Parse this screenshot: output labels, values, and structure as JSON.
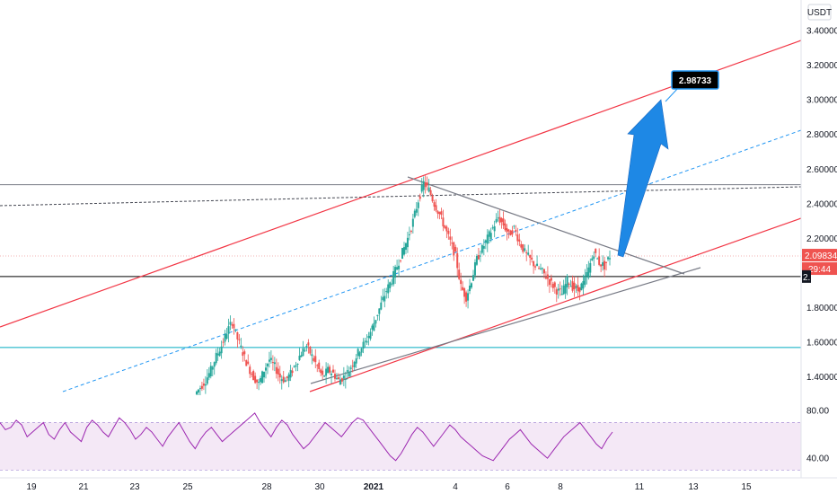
{
  "colors": {
    "up": "#26a69a",
    "down": "#ef5350",
    "channel": "#f23645",
    "midline": "#2196f3",
    "triangle": "#787b86",
    "arrow": "#1e88e5",
    "support": "#000000",
    "teal_line": "#00acc1",
    "rsi_line": "#9c27b0",
    "rsi_fill": "#f3e5f5",
    "last_price_bg": "#ef5350"
  },
  "chart_data": {
    "type": "candlestick",
    "currency_label": "USDT",
    "x_ticks": [
      "19",
      "21",
      "23",
      "25",
      "28",
      "30",
      "2021",
      "4",
      "6",
      "8",
      "11",
      "13",
      "15"
    ],
    "y_ticks": [
      "3.40000",
      "3.20000",
      "3.00000",
      "2.80000",
      "2.60000",
      "2.40000",
      "2.20000",
      "1.80000",
      "1.60000",
      "1.40000"
    ],
    "ylim": [
      1.3,
      3.5
    ],
    "price_series": [
      1.3,
      1.34,
      1.38,
      1.44,
      1.52,
      1.58,
      1.66,
      1.72,
      1.62,
      1.54,
      1.46,
      1.4,
      1.36,
      1.44,
      1.5,
      1.46,
      1.4,
      1.38,
      1.42,
      1.48,
      1.54,
      1.58,
      1.52,
      1.46,
      1.4,
      1.44,
      1.42,
      1.38,
      1.4,
      1.44,
      1.5,
      1.56,
      1.6,
      1.66,
      1.74,
      1.82,
      1.9,
      1.96,
      2.04,
      2.12,
      2.2,
      2.3,
      2.42,
      2.52,
      2.48,
      2.4,
      2.34,
      2.26,
      2.18,
      2.1,
      1.92,
      1.86,
      1.96,
      2.08,
      2.14,
      2.2,
      2.26,
      2.32,
      2.28,
      2.22,
      2.26,
      2.18,
      2.12,
      2.08,
      2.04,
      2.02,
      1.98,
      1.94,
      1.9,
      1.88,
      1.96,
      1.92,
      1.9,
      1.94,
      2.02,
      2.12,
      2.06,
      2.04,
      2.09834
    ],
    "rsi_series": [
      70,
      64,
      66,
      72,
      68,
      58,
      62,
      66,
      70,
      60,
      56,
      64,
      70,
      62,
      58,
      54,
      66,
      72,
      68,
      62,
      58,
      66,
      74,
      70,
      64,
      56,
      60,
      66,
      62,
      56,
      50,
      58,
      64,
      70,
      62,
      54,
      48,
      56,
      62,
      66,
      60,
      54,
      58,
      62,
      66,
      70,
      74,
      78,
      70,
      64,
      58,
      66,
      72,
      68,
      60,
      54,
      48,
      52,
      58,
      64,
      70,
      66,
      62,
      58,
      64,
      70,
      74,
      72,
      66,
      60,
      54,
      48,
      42,
      38,
      44,
      52,
      60,
      66,
      62,
      56,
      50,
      56,
      62,
      68,
      64,
      58,
      54,
      50,
      46,
      42,
      40,
      38,
      44,
      50,
      56,
      60,
      64,
      58,
      52,
      48,
      44,
      40,
      46,
      52,
      58,
      62,
      66,
      70,
      64,
      58,
      52,
      48,
      56,
      62
    ],
    "rsi_ticks": [
      "80.00",
      "40.00"
    ],
    "rsi_range": [
      30,
      70
    ],
    "rsi_scale": [
      25,
      90
    ],
    "last_price": "2.09834",
    "countdown": "29:44",
    "target_label": "2.98733",
    "support_level": 1.98,
    "resistance_level": 2.51,
    "teal_level": 1.57,
    "level_label_partial": "2."
  }
}
